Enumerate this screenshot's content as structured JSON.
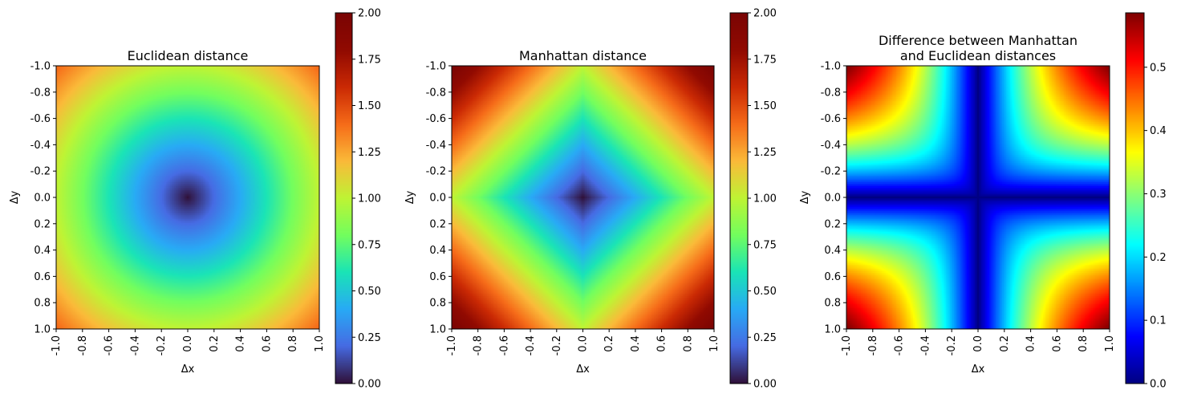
{
  "chart_data": [
    {
      "type": "heatmap",
      "metric": "euclidean",
      "title_lines": [
        "Euclidean distance"
      ],
      "xlabel": "Δx",
      "ylabel": "Δy",
      "x_ticks": [
        "-1.0",
        "-0.8",
        "-0.6",
        "-0.4",
        "-0.2",
        "0.0",
        "0.2",
        "0.4",
        "0.6",
        "0.8",
        "1.0"
      ],
      "y_ticks": [
        "-1.0",
        "-0.8",
        "-0.6",
        "-0.4",
        "-0.2",
        "0.0",
        "0.2",
        "0.4",
        "0.6",
        "0.8",
        "1.0"
      ],
      "x_range": [
        -1.0,
        1.0
      ],
      "y_range": [
        -1.0,
        1.0
      ],
      "y_axis_inverted": true,
      "colormap": "turbo",
      "value_range": [
        0.0,
        2.0
      ],
      "colorbar_ticks": [
        "0.00",
        "0.25",
        "0.50",
        "0.75",
        "1.00",
        "1.25",
        "1.50",
        "1.75",
        "2.00"
      ]
    },
    {
      "type": "heatmap",
      "metric": "manhattan",
      "title_lines": [
        "Manhattan distance"
      ],
      "xlabel": "Δx",
      "ylabel": "Δy",
      "x_ticks": [
        "-1.0",
        "-0.8",
        "-0.6",
        "-0.4",
        "-0.2",
        "0.0",
        "0.2",
        "0.4",
        "0.6",
        "0.8",
        "1.0"
      ],
      "y_ticks": [
        "-1.0",
        "-0.8",
        "-0.6",
        "-0.4",
        "-0.2",
        "0.0",
        "0.2",
        "0.4",
        "0.6",
        "0.8",
        "1.0"
      ],
      "x_range": [
        -1.0,
        1.0
      ],
      "y_range": [
        -1.0,
        1.0
      ],
      "y_axis_inverted": true,
      "colormap": "turbo",
      "value_range": [
        0.0,
        2.0
      ],
      "colorbar_ticks": [
        "0.00",
        "0.25",
        "0.50",
        "0.75",
        "1.00",
        "1.25",
        "1.50",
        "1.75",
        "2.00"
      ]
    },
    {
      "type": "heatmap",
      "metric": "difference",
      "title_lines": [
        "Difference between Manhattan",
        "and Euclidean distances"
      ],
      "xlabel": "Δx",
      "ylabel": "Δy",
      "x_ticks": [
        "-1.0",
        "-0.8",
        "-0.6",
        "-0.4",
        "-0.2",
        "0.0",
        "0.2",
        "0.4",
        "0.6",
        "0.8",
        "1.0"
      ],
      "y_ticks": [
        "-1.0",
        "-0.8",
        "-0.6",
        "-0.4",
        "-0.2",
        "0.0",
        "0.2",
        "0.4",
        "0.6",
        "0.8",
        "1.0"
      ],
      "x_range": [
        -1.0,
        1.0
      ],
      "y_range": [
        -1.0,
        1.0
      ],
      "y_axis_inverted": true,
      "colormap": "jet",
      "value_range": [
        0.0,
        0.586
      ],
      "colorbar_ticks": [
        "0.0",
        "0.1",
        "0.2",
        "0.3",
        "0.4",
        "0.5"
      ]
    }
  ]
}
